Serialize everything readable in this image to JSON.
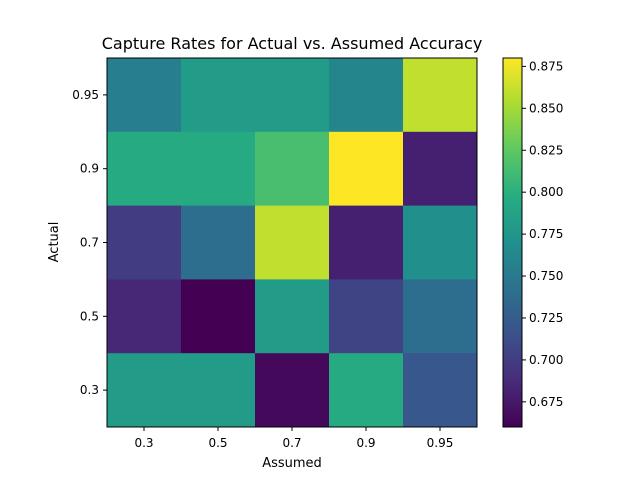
{
  "chart_data": {
    "type": "heatmap",
    "title": "Capture Rates for Actual vs. Assumed Accuracy",
    "xlabel": "Assumed",
    "ylabel": "Actual",
    "x_categories": [
      "0.3",
      "0.5",
      "0.7",
      "0.9",
      "0.95"
    ],
    "y_categories": [
      "0.95",
      "0.9",
      "0.7",
      "0.5",
      "0.3"
    ],
    "values": [
      [
        0.755,
        0.78,
        0.78,
        0.76,
        0.86
      ],
      [
        0.795,
        0.795,
        0.815,
        0.88,
        0.68
      ],
      [
        0.7,
        0.74,
        0.86,
        0.68,
        0.77
      ],
      [
        0.685,
        0.66,
        0.78,
        0.705,
        0.74
      ],
      [
        0.78,
        0.78,
        0.665,
        0.795,
        0.72
      ]
    ],
    "colormap": "viridis",
    "vmin": 0.66,
    "vmax": 0.88,
    "colorbar_ticks": [
      "0.675",
      "0.700",
      "0.725",
      "0.750",
      "0.775",
      "0.800",
      "0.825",
      "0.850",
      "0.875"
    ],
    "grid": false
  }
}
